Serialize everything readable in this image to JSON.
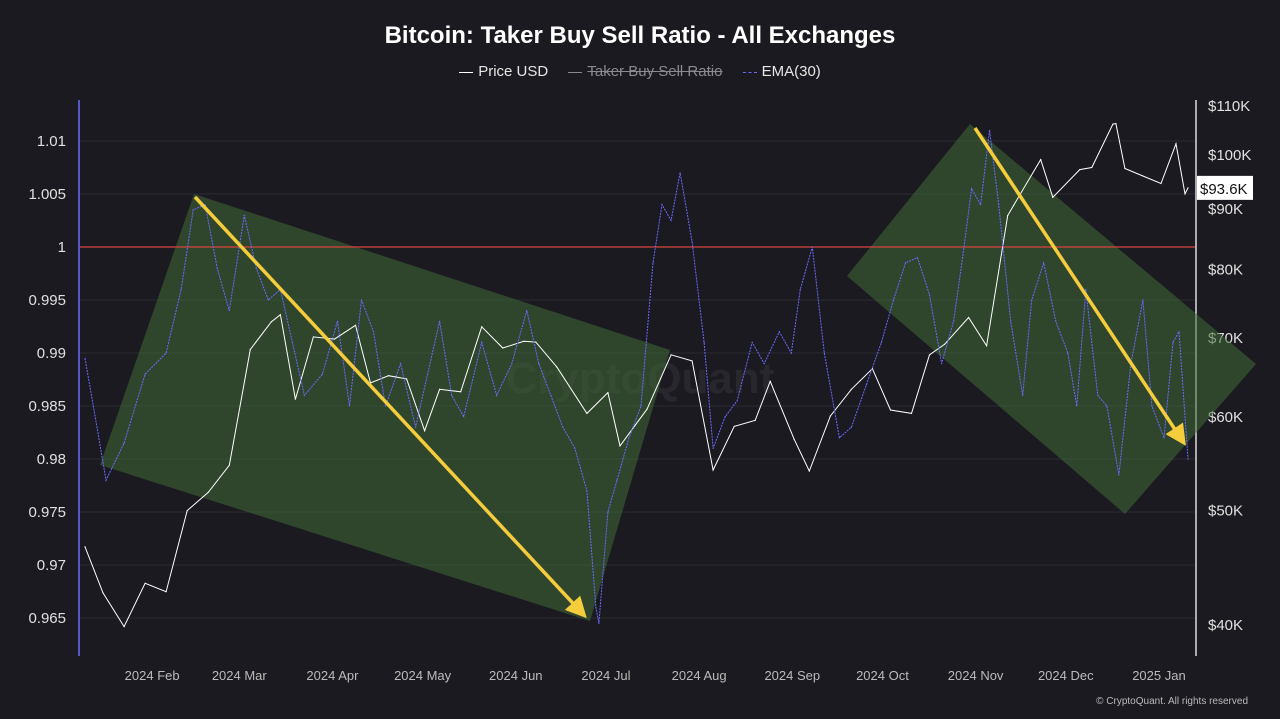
{
  "chart_data": {
    "type": "line",
    "title": "Bitcoin: Taker Buy Sell Ratio - All Exchanges",
    "legend": [
      {
        "name": "Price USD",
        "color": "#ffffff",
        "visible": true
      },
      {
        "name": "Taker Buy Sell Ratio",
        "color": "#8a8a8f",
        "visible": false
      },
      {
        "name": "EMA(30)",
        "color": "#6b6bff",
        "visible": true
      }
    ],
    "legend_placement": "top-center",
    "x_ticks": [
      "2024 Feb",
      "2024 Mar",
      "2024 Apr",
      "2024 May",
      "2024 Jun",
      "2024 Jul",
      "2024 Aug",
      "2024 Sep",
      "2024 Oct",
      "2024 Nov",
      "2024 Dec",
      "2025 Jan"
    ],
    "x_range": [
      "2024-01-09",
      "2025-01-10"
    ],
    "y_left": {
      "ticks": [
        "1.01",
        "1.005",
        "1",
        "0.995",
        "0.99",
        "0.985",
        "0.98",
        "0.975",
        "0.97",
        "0.965"
      ],
      "range": [
        0.9625,
        1.0155
      ]
    },
    "y_right": {
      "scale": "log",
      "ticks": [
        "$110K",
        "$100K",
        "$90K",
        "$80K",
        "$70K",
        "$60K",
        "$50K",
        "$40K"
      ],
      "range": [
        38000,
        113000
      ]
    },
    "reference_line": {
      "value": 1,
      "color": "#d9443c"
    },
    "current_price_label": "$93.6K",
    "grid": true,
    "series": [
      {
        "name": "Price USD",
        "axis": "right",
        "color": "#ffffff",
        "x": [
          "2024-01-09",
          "2024-01-15",
          "2024-01-22",
          "2024-01-29",
          "2024-02-05",
          "2024-02-12",
          "2024-02-19",
          "2024-02-26",
          "2024-03-04",
          "2024-03-11",
          "2024-03-14",
          "2024-03-19",
          "2024-03-25",
          "2024-04-01",
          "2024-04-08",
          "2024-04-13",
          "2024-04-19",
          "2024-04-25",
          "2024-05-01",
          "2024-05-06",
          "2024-05-13",
          "2024-05-20",
          "2024-05-27",
          "2024-06-03",
          "2024-06-07",
          "2024-06-14",
          "2024-06-24",
          "2024-07-01",
          "2024-07-05",
          "2024-07-14",
          "2024-07-22",
          "2024-07-29",
          "2024-08-05",
          "2024-08-12",
          "2024-08-19",
          "2024-08-24",
          "2024-09-01",
          "2024-09-06",
          "2024-09-13",
          "2024-09-20",
          "2024-09-27",
          "2024-10-03",
          "2024-10-10",
          "2024-10-16",
          "2024-10-21",
          "2024-10-29",
          "2024-11-04",
          "2024-11-11",
          "2024-11-13",
          "2024-11-22",
          "2024-11-26",
          "2024-12-05",
          "2024-12-09",
          "2024-12-16",
          "2024-12-17",
          "2024-12-20",
          "2024-12-26",
          "2025-01-01",
          "2025-01-06",
          "2025-01-09",
          "2025-01-10"
        ],
        "values": [
          46500,
          42500,
          39800,
          43300,
          42600,
          49900,
          51700,
          54500,
          68300,
          72100,
          73100,
          62000,
          70000,
          69700,
          71600,
          64000,
          64900,
          64500,
          58300,
          63200,
          62900,
          71400,
          68500,
          69400,
          69300,
          66000,
          60300,
          62800,
          56600,
          60800,
          67600,
          66800,
          54000,
          58800,
          59500,
          64200,
          57300,
          53900,
          60000,
          63200,
          65800,
          60700,
          60300,
          67600,
          69000,
          72700,
          68800,
          88700,
          90500,
          98900,
          91900,
          97000,
          97400,
          106000,
          106100,
          97200,
          95800,
          94400,
          102000,
          92500,
          93600
        ]
      },
      {
        "name": "EMA(30)",
        "axis": "left",
        "color": "#6b6bff",
        "x": [
          "2024-01-09",
          "2024-01-13",
          "2024-01-16",
          "2024-01-22",
          "2024-01-29",
          "2024-02-05",
          "2024-02-10",
          "2024-02-14",
          "2024-02-18",
          "2024-02-22",
          "2024-02-26",
          "2024-03-02",
          "2024-03-06",
          "2024-03-10",
          "2024-03-14",
          "2024-03-18",
          "2024-03-22",
          "2024-03-28",
          "2024-04-02",
          "2024-04-06",
          "2024-04-10",
          "2024-04-14",
          "2024-04-18",
          "2024-04-23",
          "2024-04-28",
          "2024-05-02",
          "2024-05-06",
          "2024-05-10",
          "2024-05-14",
          "2024-05-20",
          "2024-05-25",
          "2024-05-30",
          "2024-06-04",
          "2024-06-08",
          "2024-06-12",
          "2024-06-16",
          "2024-06-20",
          "2024-06-24",
          "2024-06-27",
          "2024-06-28",
          "2024-07-01",
          "2024-07-04",
          "2024-07-08",
          "2024-07-12",
          "2024-07-16",
          "2024-07-19",
          "2024-07-22",
          "2024-07-25",
          "2024-07-29",
          "2024-08-02",
          "2024-08-05",
          "2024-08-09",
          "2024-08-13",
          "2024-08-18",
          "2024-08-22",
          "2024-08-27",
          "2024-08-31",
          "2024-09-03",
          "2024-09-07",
          "2024-09-11",
          "2024-09-16",
          "2024-09-20",
          "2024-09-25",
          "2024-09-30",
          "2024-10-04",
          "2024-10-08",
          "2024-10-12",
          "2024-10-16",
          "2024-10-20",
          "2024-10-24",
          "2024-10-27",
          "2024-10-30",
          "2024-11-02",
          "2024-11-05",
          "2024-11-08",
          "2024-11-12",
          "2024-11-16",
          "2024-11-19",
          "2024-11-23",
          "2024-11-27",
          "2024-12-01",
          "2024-12-04",
          "2024-12-07",
          "2024-12-11",
          "2024-12-14",
          "2024-12-18",
          "2024-12-22",
          "2024-12-26",
          "2024-12-29",
          "2025-01-02",
          "2025-01-05",
          "2025-01-07",
          "2025-01-10"
        ],
        "values": [
          0.9895,
          0.983,
          0.978,
          0.9815,
          0.988,
          0.99,
          0.996,
          1.0035,
          1.004,
          0.998,
          0.994,
          1.003,
          0.998,
          0.995,
          0.996,
          0.991,
          0.986,
          0.988,
          0.993,
          0.985,
          0.995,
          0.992,
          0.985,
          0.989,
          0.983,
          0.988,
          0.993,
          0.986,
          0.984,
          0.991,
          0.986,
          0.989,
          0.994,
          0.989,
          0.986,
          0.983,
          0.981,
          0.977,
          0.966,
          0.9645,
          0.975,
          0.978,
          0.982,
          0.985,
          0.9985,
          1.004,
          1.0025,
          1.007,
          1.0005,
          0.991,
          0.981,
          0.984,
          0.9855,
          0.991,
          0.989,
          0.992,
          0.99,
          0.996,
          1.0,
          0.99,
          0.982,
          0.983,
          0.987,
          0.991,
          0.995,
          0.9985,
          0.999,
          0.9955,
          0.989,
          0.993,
          0.999,
          1.0055,
          1.004,
          1.011,
          1.004,
          0.993,
          0.986,
          0.995,
          0.9985,
          0.993,
          0.99,
          0.985,
          0.996,
          0.986,
          0.985,
          0.9785,
          0.989,
          0.995,
          0.985,
          0.982,
          0.991,
          0.992,
          0.98
        ]
      }
    ],
    "watermark": "CryptoQuant"
  },
  "footer": "© CryptoQuant. All rights reserved"
}
